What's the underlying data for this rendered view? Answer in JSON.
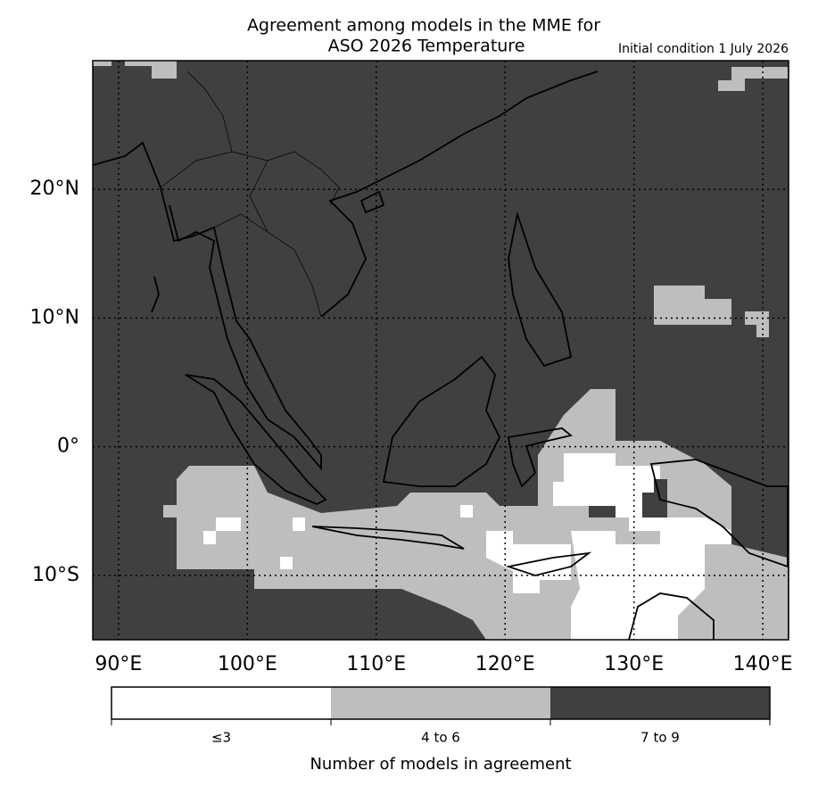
{
  "map": {
    "title": [
      "Agreement among models in the MME for",
      "ASO 2026  Temperature"
    ],
    "subtitle": "Initial condition 1 July 2026",
    "xlim": [
      88,
      142
    ],
    "ylim": [
      -15,
      30
    ],
    "xticks": [
      {
        "value": 90,
        "label": "90°E"
      },
      {
        "value": 100,
        "label": "100°E"
      },
      {
        "value": 110,
        "label": "110°E"
      },
      {
        "value": 120,
        "label": "120°E"
      },
      {
        "value": 130,
        "label": "130°E"
      },
      {
        "value": 140,
        "label": "140°E"
      }
    ],
    "yticks": [
      {
        "value": 20,
        "label": "20°N"
      },
      {
        "value": 10,
        "label": "10°N"
      },
      {
        "value": 0,
        "label": "0°"
      },
      {
        "value": -10,
        "label": "10°S"
      }
    ],
    "grid": true,
    "legend": {
      "title": "Number of models in agreement",
      "items": [
        {
          "label": "≤3",
          "color": "#ffffff"
        },
        {
          "label": "4 to 6",
          "color": "#bebebe"
        },
        {
          "label": "7 to 9",
          "color": "#404040"
        }
      ]
    }
  }
}
